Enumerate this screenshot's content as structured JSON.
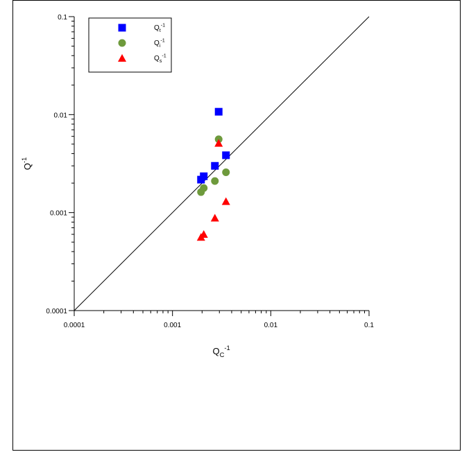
{
  "chart_data": {
    "type": "scatter",
    "xscale": "log",
    "yscale": "log",
    "xlim": [
      0.0001,
      0.1
    ],
    "ylim": [
      0.0001,
      0.1
    ],
    "x_ticks": [
      0.0001,
      0.001,
      0.01,
      0.1
    ],
    "y_ticks": [
      0.0001,
      0.001,
      0.01,
      0.1
    ],
    "x_tick_labels": [
      "0.0001",
      "0.001",
      "0.01",
      "0.1"
    ],
    "y_tick_labels": [
      "0.0001",
      "0.001",
      "0.01",
      "0.1"
    ],
    "xlabel": {
      "base": "Q",
      "sub": "C",
      "sup": "-1"
    },
    "ylabel": {
      "base": "Q",
      "sup": "-1"
    },
    "grid": false,
    "legend_position": "top-left",
    "reference_line": {
      "from": [
        0.0001,
        0.0001
      ],
      "to": [
        0.1,
        0.1
      ]
    },
    "series": [
      {
        "name": {
          "base": "Q",
          "sub": "t",
          "sup": "-1"
        },
        "marker": "square",
        "color": "#0000FF",
        "x": [
          0.00195,
          0.00208,
          0.0027,
          0.00295,
          0.0035
        ],
        "y": [
          0.00217,
          0.00235,
          0.003,
          0.0107,
          0.00385
        ]
      },
      {
        "name": {
          "base": "Q",
          "sub": "i",
          "sup": "-1"
        },
        "marker": "circle",
        "color": "#6E9A3C",
        "x": [
          0.00195,
          0.00208,
          0.0027,
          0.00295,
          0.0035
        ],
        "y": [
          0.00162,
          0.00178,
          0.0021,
          0.0056,
          0.00258
        ]
      },
      {
        "name": {
          "base": "Q",
          "sub": "s",
          "sup": "-1"
        },
        "marker": "triangle",
        "color": "#FF0000",
        "x": [
          0.00195,
          0.00208,
          0.0027,
          0.00295,
          0.0035
        ],
        "y": [
          0.00056,
          0.0006,
          0.00088,
          0.0051,
          0.0013
        ]
      }
    ]
  }
}
